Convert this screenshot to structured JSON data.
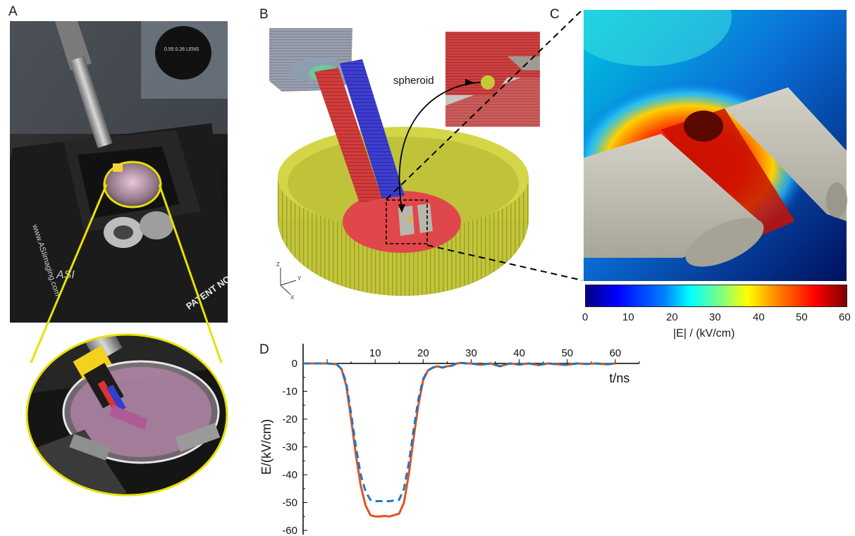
{
  "panel_labels": {
    "a": "A",
    "b": "B",
    "c": "C",
    "d": "D"
  },
  "panel_b": {
    "annotation": "spheroid",
    "axes": {
      "z": "Z",
      "y": "Y",
      "x": "X"
    }
  },
  "panel_a_photo_text": {
    "brand": "www.ASIimaging.com",
    "logo": "ASI",
    "plate": "PATENT NO",
    "lens": "0.55 0.26 LENS"
  },
  "colorbar": {
    "ticks": [
      "0",
      "10",
      "20",
      "30",
      "40",
      "50",
      "60"
    ],
    "label": "|E| / (kV/cm)",
    "colors": [
      "#00007f",
      "#0000ff",
      "#007fff",
      "#00ffff",
      "#7fff7f",
      "#ffff00",
      "#ff7f00",
      "#ff0000",
      "#7f0000"
    ]
  },
  "colors": {
    "dish": "#c6c93a",
    "dish_dark": "#9ea12a",
    "probe_red": "#d23c3c",
    "probe_blue": "#3d3dd1",
    "electrode": "#c8c5b8",
    "series_orange": "#e0531c",
    "series_blue": "#1f77c4"
  },
  "chart_data": {
    "type": "line",
    "xlabel": "t/ns",
    "ylabel": "E/(kV/cm)",
    "xlim": [
      -5,
      65
    ],
    "ylim": [
      -60,
      0
    ],
    "xticks": [
      "10",
      "20",
      "30",
      "40",
      "50",
      "60"
    ],
    "yticks": [
      "0",
      "-10",
      "-20",
      "-30",
      "-40",
      "-50",
      "-60"
    ],
    "series": [
      {
        "color": "#e0531c",
        "dash": false,
        "x": [
          -5,
          0,
          2,
          3,
          4,
          5,
          6,
          7,
          8,
          9,
          10,
          11,
          12,
          13,
          14,
          15,
          16,
          17,
          18,
          19,
          20,
          21,
          22,
          23,
          24,
          25,
          26,
          27,
          28,
          29,
          30,
          32,
          34,
          36,
          38,
          40,
          42,
          44,
          46,
          48,
          50,
          52,
          54,
          56,
          58,
          60
        ],
        "y": [
          0,
          0,
          -0.3,
          -2,
          -8,
          -20,
          -33,
          -44,
          -51,
          -54.5,
          -55,
          -55,
          -54.8,
          -55,
          -54.5,
          -54,
          -50,
          -40,
          -27,
          -15,
          -6,
          -2.5,
          -1.5,
          -1,
          -1.5,
          -1,
          -0.8,
          0,
          0.2,
          0,
          0,
          -0.5,
          0,
          -1,
          0,
          -0.4,
          0,
          -0.6,
          0,
          -0.3,
          -0.5,
          0,
          -0.2,
          0,
          -0.3,
          0
        ]
      },
      {
        "color": "#1f77c4",
        "dash": true,
        "x": [
          -5,
          0,
          2,
          3,
          4,
          5,
          6,
          7,
          8,
          9,
          10,
          11,
          12,
          13,
          14,
          15,
          16,
          17,
          18,
          19,
          20,
          21,
          22,
          23,
          24,
          25,
          26,
          27,
          28,
          29,
          30,
          32,
          34,
          36,
          38,
          40,
          42,
          44,
          46,
          48,
          50,
          52,
          54,
          56,
          58,
          60
        ],
        "y": [
          0,
          0,
          -0.3,
          -2,
          -7,
          -18,
          -30,
          -40,
          -46,
          -49,
          -49.5,
          -49.5,
          -49.5,
          -49.5,
          -49.3,
          -49,
          -45,
          -36,
          -24,
          -13,
          -5.5,
          -2.5,
          -1.5,
          -1,
          -1.5,
          -1,
          -0.8,
          0,
          0.2,
          0,
          0,
          -0.5,
          0,
          -1,
          0,
          -0.4,
          0,
          -0.6,
          0,
          -0.3,
          -0.5,
          0,
          -0.2,
          0,
          -0.3,
          0
        ]
      }
    ]
  }
}
